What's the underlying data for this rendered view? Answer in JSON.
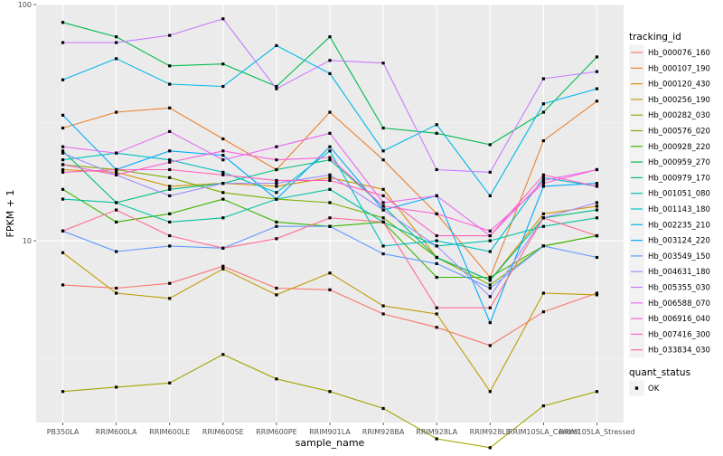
{
  "chart_data": {
    "type": "line",
    "xlabel": "sample_name",
    "ylabel": "FPKM + 1",
    "y_scale": "log10",
    "ylim": [
      1.7,
      100
    ],
    "y_ticks": [
      {
        "value": 10,
        "label": "10"
      },
      {
        "value": 100,
        "label": "100"
      }
    ],
    "categories": [
      "PB350LA",
      "RRIM600LA",
      "RRIM600LE",
      "RRIM600SE",
      "RRIM600PE",
      "RRIM901LA",
      "RRIM928BA",
      "RRIM928LA",
      "RRIM928LE",
      "RRIM105LA_Control",
      "RRIM105LA_Stressed"
    ],
    "legend": {
      "title": "tracking_id",
      "position": "right",
      "shape_title": "quant_status",
      "shape_entries": [
        "OK"
      ]
    },
    "series": [
      {
        "name": "Hb_000076_160",
        "color": "#F8766D",
        "values": [
          6.5,
          6.3,
          6.6,
          7.8,
          6.3,
          6.2,
          4.9,
          4.3,
          3.6,
          5.0,
          6.0
        ]
      },
      {
        "name": "Hb_000107_190",
        "color": "#EA8331",
        "values": [
          30.0,
          35.0,
          36.5,
          27.0,
          20.0,
          35.0,
          22.0,
          13.0,
          7.0,
          26.5,
          39.0
        ]
      },
      {
        "name": "Hb_000120_430",
        "color": "#D89000",
        "values": [
          20.0,
          19.5,
          17.0,
          17.5,
          17.0,
          18.5,
          16.5,
          8.5,
          6.8,
          13.0,
          14.0
        ]
      },
      {
        "name": "Hb_000256_190",
        "color": "#C09B00",
        "values": [
          8.9,
          6.0,
          5.7,
          7.6,
          5.9,
          7.3,
          5.3,
          4.9,
          2.3,
          6.0,
          5.9
        ]
      },
      {
        "name": "Hb_000282_030",
        "color": "#A3A500",
        "values": [
          2.3,
          2.4,
          2.5,
          3.3,
          2.6,
          2.3,
          1.95,
          1.45,
          1.33,
          2.0,
          2.3
        ]
      },
      {
        "name": "Hb_000576_020",
        "color": "#7CAE00",
        "values": [
          21.0,
          20.0,
          18.5,
          16.0,
          15.0,
          14.5,
          12.5,
          8.5,
          6.5,
          9.5,
          10.5
        ]
      },
      {
        "name": "Hb_000928_220",
        "color": "#39B600",
        "values": [
          16.5,
          12.0,
          13.0,
          15.0,
          12.0,
          11.5,
          12.0,
          7.0,
          7.0,
          9.5,
          10.5
        ]
      },
      {
        "name": "Hb_000959_270",
        "color": "#00BB4E",
        "values": [
          84.0,
          73.0,
          55.0,
          56.0,
          45.0,
          73.0,
          30.0,
          28.5,
          25.5,
          35.0,
          60.0
        ]
      },
      {
        "name": "Hb_000979_170",
        "color": "#00BF7D",
        "values": [
          24.0,
          14.5,
          16.5,
          17.5,
          20.0,
          22.0,
          14.0,
          8.5,
          6.8,
          12.5,
          13.5
        ]
      },
      {
        "name": "Hb_001051_080",
        "color": "#00C1A3",
        "values": [
          15.0,
          14.5,
          12.0,
          12.5,
          15.0,
          16.5,
          12.0,
          9.5,
          10.0,
          11.5,
          12.5
        ]
      },
      {
        "name": "Hb_001143_180",
        "color": "#00BFC4",
        "values": [
          22.0,
          23.5,
          22.0,
          19.5,
          16.0,
          24.0,
          9.5,
          10.0,
          9.0,
          18.5,
          17.0
        ]
      },
      {
        "name": "Hb_002235_210",
        "color": "#00B8E7",
        "values": [
          48.0,
          59.0,
          46.0,
          45.0,
          67.0,
          51.0,
          24.0,
          31.0,
          15.5,
          38.0,
          44.0
        ]
      },
      {
        "name": "Hb_003124_220",
        "color": "#00A9FF",
        "values": [
          34.0,
          20.0,
          24.0,
          23.0,
          15.0,
          25.0,
          13.5,
          15.5,
          4.5,
          17.0,
          17.5
        ]
      },
      {
        "name": "Hb_003549_150",
        "color": "#619CFF",
        "values": [
          11.0,
          9.0,
          9.5,
          9.3,
          11.5,
          11.5,
          8.8,
          8.0,
          6.3,
          9.5,
          8.5
        ]
      },
      {
        "name": "Hb_004631_180",
        "color": "#9F8CFF",
        "values": [
          23.5,
          19.0,
          15.5,
          17.5,
          17.5,
          19.0,
          13.5,
          9.5,
          5.8,
          12.5,
          14.5
        ]
      },
      {
        "name": "Hb_005355_030",
        "color": "#C77CFF",
        "values": [
          69.0,
          69.0,
          74.0,
          87.0,
          44.0,
          58.0,
          56.5,
          20.0,
          19.5,
          48.5,
          52.0
        ]
      },
      {
        "name": "Hb_006588_070",
        "color": "#E76BF3",
        "values": [
          25.0,
          23.5,
          29.0,
          22.0,
          25.0,
          28.5,
          14.5,
          15.5,
          10.5,
          18.0,
          20.0
        ]
      },
      {
        "name": "Hb_006916_040",
        "color": "#FA62DB",
        "values": [
          21.0,
          19.0,
          21.5,
          24.0,
          22.0,
          22.5,
          14.0,
          13.0,
          11.0,
          17.5,
          20.0
        ]
      },
      {
        "name": "Hb_007416_300",
        "color": "#FF62BC",
        "values": [
          19.5,
          20.0,
          20.0,
          19.0,
          18.0,
          18.0,
          15.5,
          10.5,
          10.5,
          19.0,
          17.0
        ]
      },
      {
        "name": "Hb_033834_030",
        "color": "#FF6C91",
        "values": [
          11.0,
          13.5,
          10.5,
          9.3,
          10.2,
          12.5,
          12.0,
          5.2,
          5.2,
          12.5,
          10.5
        ]
      }
    ]
  }
}
